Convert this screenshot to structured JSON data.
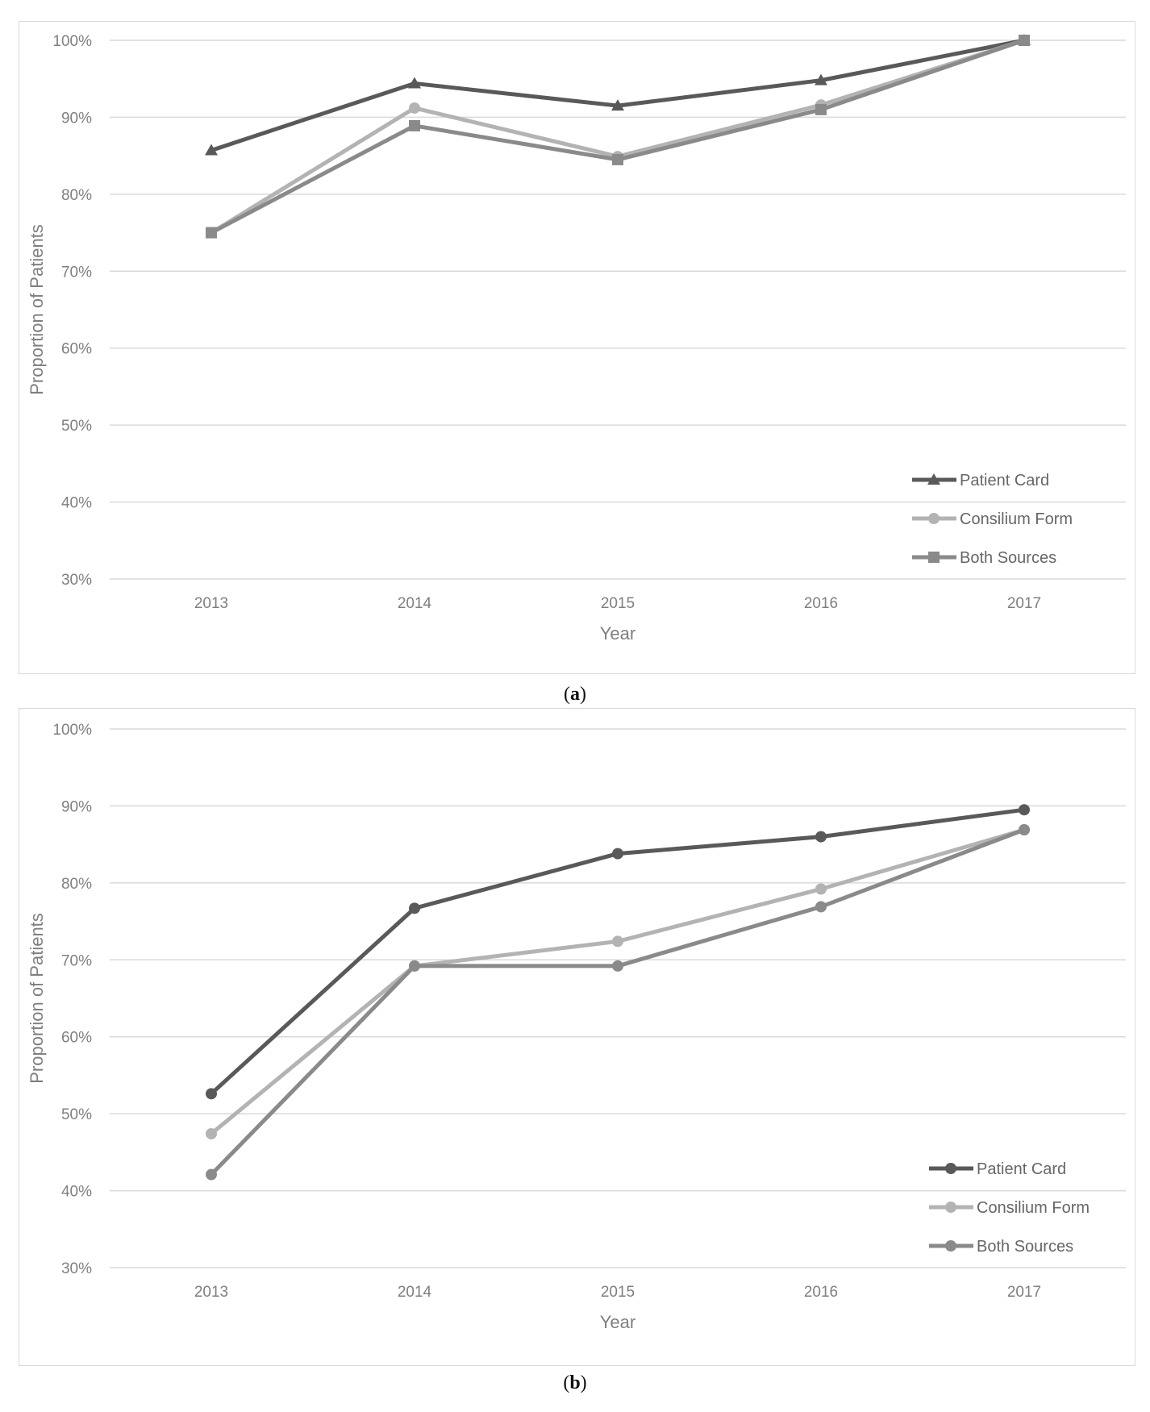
{
  "chart_data": [
    {
      "type": "line",
      "panel": "a",
      "categories": [
        "2013",
        "2014",
        "2015",
        "2016",
        "2017"
      ],
      "y_tick_labels": [
        "30%",
        "40%",
        "50%",
        "60%",
        "70%",
        "80%",
        "90%",
        "100%"
      ],
      "ylim": [
        30,
        100
      ],
      "xlabel": "Year",
      "ylabel": "Proportion of Patients",
      "grid": true,
      "legend_position": "bottom-right",
      "series": [
        {
          "name": "Patient Card",
          "values": [
            85.7,
            94.4,
            91.5,
            94.8,
            100
          ],
          "color": "#595959",
          "marker": "triangle"
        },
        {
          "name": "Consilium Form",
          "values": [
            75.0,
            91.2,
            84.9,
            91.6,
            100
          ],
          "color": "#b3b3b3",
          "marker": "circle"
        },
        {
          "name": "Both Sources",
          "values": [
            75.0,
            88.9,
            84.5,
            91.0,
            100
          ],
          "color": "#8a8a8a",
          "marker": "square"
        }
      ],
      "caption": {
        "open": "(",
        "letter": "a",
        "close": ")"
      }
    },
    {
      "type": "line",
      "panel": "b",
      "categories": [
        "2013",
        "2014",
        "2015",
        "2016",
        "2017"
      ],
      "y_tick_labels": [
        "30%",
        "40%",
        "50%",
        "60%",
        "70%",
        "80%",
        "90%",
        "100%"
      ],
      "ylim": [
        30,
        100
      ],
      "xlabel": "Year",
      "ylabel": "Proportion of Patients",
      "grid": true,
      "legend_position": "bottom-right",
      "series": [
        {
          "name": "Patient Card",
          "values": [
            52.6,
            76.7,
            83.8,
            86.0,
            89.5
          ],
          "color": "#595959",
          "marker": "circle"
        },
        {
          "name": "Consilium Form",
          "values": [
            47.4,
            69.2,
            72.4,
            79.2,
            86.9
          ],
          "color": "#b3b3b3",
          "marker": "circle"
        },
        {
          "name": "Both Sources",
          "values": [
            42.1,
            69.2,
            69.2,
            76.9,
            86.9
          ],
          "color": "#8a8a8a",
          "marker": "circle"
        }
      ],
      "caption": {
        "open": "(",
        "letter": "b",
        "close": ")"
      }
    }
  ]
}
